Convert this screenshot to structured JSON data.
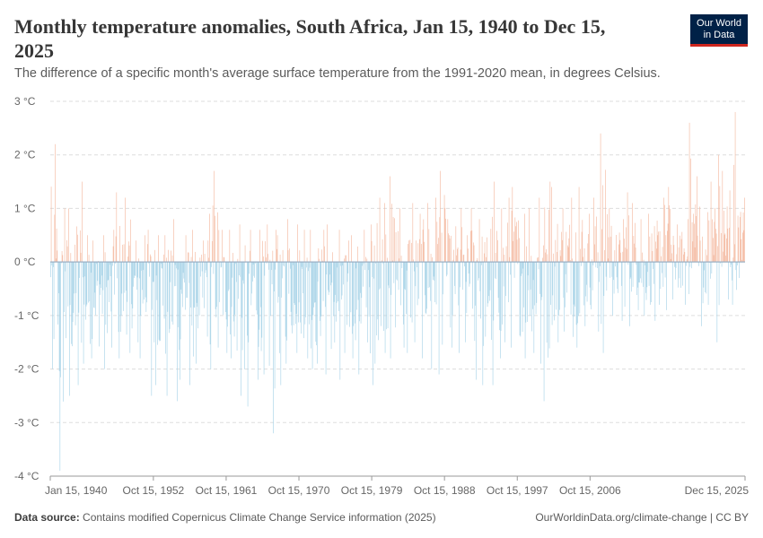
{
  "header": {
    "title": "Monthly temperature anomalies, South Africa, Jan 15, 1940 to Dec 15, 2025",
    "subtitle": "The difference of a specific month's average surface temperature from the 1991-2020 mean, in degrees Celsius."
  },
  "logo": {
    "line1": "Our World",
    "line2": "in Data"
  },
  "footer": {
    "source_label": "Data source:",
    "source_text": "Contains modified Copernicus Climate Change Service information (2025)",
    "right_text": "OurWorldinData.org/climate-change | CC BY"
  },
  "colors": {
    "positive": "#f4b9a0",
    "negative": "#a8d3e8",
    "zero_line": "#9bb0c4",
    "grid": "#dddddd"
  },
  "chart_data": {
    "type": "bar",
    "title": "Monthly temperature anomalies, South Africa, Jan 15, 1940 to Dec 15, 2025",
    "ylabel": "",
    "y_unit": "°C",
    "ylim": [
      -4,
      3
    ],
    "y_ticks": [
      "3 °C",
      "2 °C",
      "1 °C",
      "0 °C",
      "-1 °C",
      "-2 °C",
      "-3 °C",
      "-4 °C"
    ],
    "y_tick_values": [
      3,
      2,
      1,
      0,
      -1,
      -2,
      -3,
      -4
    ],
    "x_start": "Jan 15, 1940",
    "x_end": "Dec 15, 2025",
    "x_ticks": [
      "Jan 15, 1940",
      "Oct 15, 1952",
      "Oct 15, 1961",
      "Oct 15, 1970",
      "Oct 15, 1979",
      "Oct 15, 1988",
      "Oct 15, 1997",
      "Oct 15, 2006",
      "Dec 15, 2025"
    ],
    "grid": true,
    "series": [
      {
        "yearly_mean_anomaly": [
          -0.9,
          -0.8,
          -0.6,
          -0.4,
          -0.6,
          -0.4,
          -0.5,
          -0.6,
          -0.5,
          -0.4,
          -0.5,
          -0.4,
          -0.3,
          -0.4,
          -0.5,
          -0.5,
          -0.5,
          -0.6,
          -0.6,
          -0.4,
          -0.3,
          -0.4,
          -0.5,
          -0.5,
          -0.5,
          -0.3,
          -0.4,
          -0.4,
          -0.5,
          -0.4,
          -0.3,
          -0.4,
          -0.6,
          -0.4,
          -0.5,
          -0.7,
          -0.5,
          -0.5,
          -0.4,
          -0.3,
          -0.2,
          -0.1,
          -0.2,
          -0.1,
          -0.3,
          -0.3,
          -0.1,
          -0.1,
          0.0,
          -0.2,
          -0.1,
          -0.4,
          -0.1,
          -0.1,
          -0.3,
          -0.4,
          -0.2,
          -0.1,
          -0.2,
          -0.3,
          -0.1,
          0.1,
          -0.3,
          0.1,
          0.0,
          0.1,
          -0.1,
          0.1,
          0.0,
          0.3,
          0.0,
          0.1,
          0.1,
          -0.2,
          0.0,
          0.1,
          0.4,
          0.0,
          0.1,
          0.3,
          0.1,
          0.0,
          0.4,
          0.4,
          0.3,
          0.5
        ],
        "yearly_max_anomaly": [
          2.2,
          1.0,
          1.0,
          1.5,
          0.5,
          0.4,
          0.5,
          0.6,
          1.3,
          1.2,
          0.4,
          0.5,
          0.6,
          0.5,
          0.5,
          0.8,
          0.5,
          0.6,
          0.4,
          0.9,
          1.7,
          0.6,
          0.6,
          0.7,
          0.6,
          0.6,
          0.7,
          0.6,
          0.5,
          0.8,
          0.7,
          0.6,
          0.6,
          0.6,
          0.7,
          0.6,
          0.4,
          0.5,
          0.6,
          0.7,
          1.2,
          1.1,
          1.6,
          1.0,
          1.1,
          0.9,
          1.1,
          1.2,
          1.7,
          0.8,
          1.0,
          0.5,
          1.0,
          0.8,
          1.5,
          1.0,
          1.2,
          1.4,
          0.9,
          1.0,
          1.2,
          1.5,
          1.4,
          1.0,
          1.2,
          1.4,
          0.9,
          1.2,
          2.4,
          1.0,
          0.8,
          1.3,
          1.1,
          0.8,
          0.9,
          1.2,
          1.4,
          0.7,
          0.8,
          2.6,
          1.6,
          1.5,
          2.0,
          1.7,
          2.8,
          1.2
        ],
        "yearly_min_anomaly": [
          -2.0,
          -3.9,
          -2.5,
          -2.3,
          -1.9,
          -1.8,
          -2.0,
          -1.6,
          -1.8,
          -1.7,
          -1.5,
          -1.8,
          -2.5,
          -2.3,
          -2.5,
          -2.6,
          -2.2,
          -2.3,
          -1.9,
          -2.0,
          -1.6,
          -1.7,
          -1.8,
          -2.5,
          -2.7,
          -2.2,
          -2.1,
          -3.2,
          -2.3,
          -1.9,
          -1.7,
          -1.8,
          -2.0,
          -1.9,
          -2.1,
          -2.2,
          -1.7,
          -1.8,
          -2.1,
          -2.3,
          -1.9,
          -1.7,
          -1.8,
          -1.6,
          -1.7,
          -1.5,
          -1.8,
          -2.0,
          -2.1,
          -1.6,
          -1.7,
          -1.5,
          -2.2,
          -2.3,
          -2.3,
          -1.8,
          -1.5,
          -1.6,
          -1.8,
          -1.7,
          -1.9,
          -2.6,
          -1.5,
          -1.3,
          -1.4,
          -1.6,
          -1.2,
          -1.3,
          -1.7,
          -1.0,
          -1.1,
          -1.2,
          -0.9,
          -1.0,
          -1.1,
          -0.8,
          -0.9,
          -0.7,
          -0.8,
          -0.6,
          -1.2,
          -0.8,
          -1.5,
          -0.7,
          -0.8,
          -0.3
        ]
      }
    ]
  }
}
